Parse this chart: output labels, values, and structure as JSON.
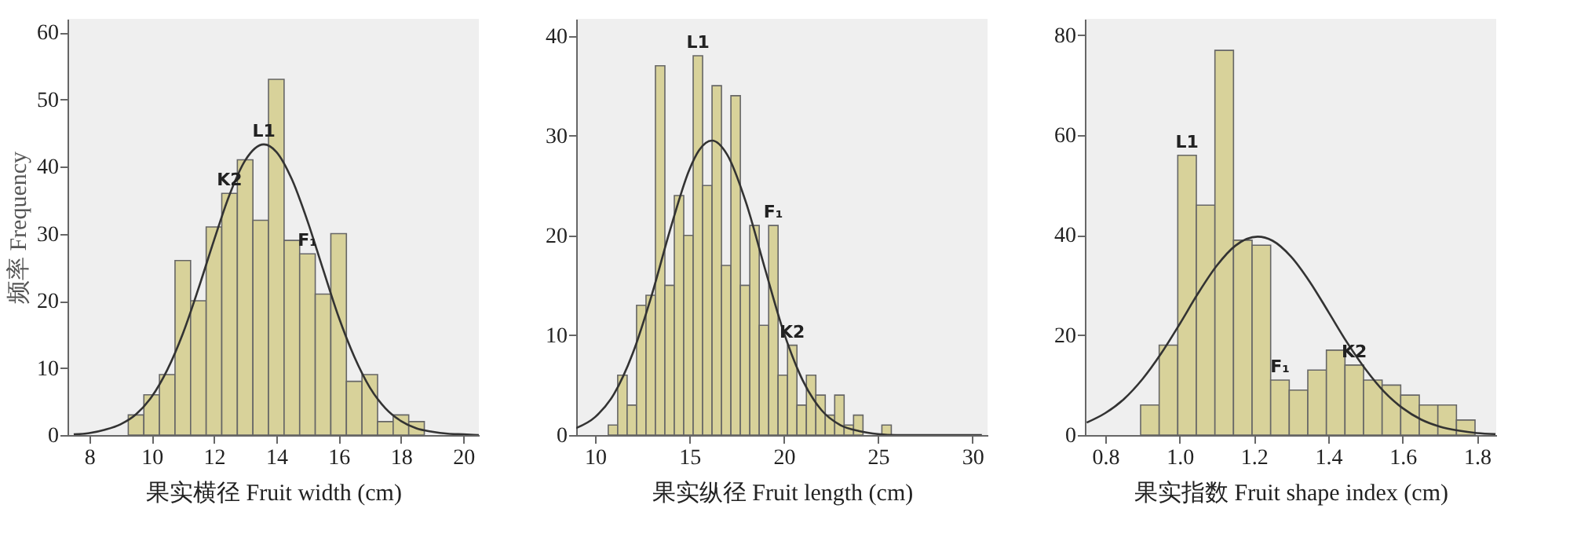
{
  "chart_data": [
    {
      "type": "histogram",
      "xlabel": "果实横径 Fruit width (cm)",
      "ylabel": "频率 Frequency",
      "color": "#d8d29a",
      "bins": [
        9.25,
        9.75,
        10.25,
        10.75,
        11.25,
        11.75,
        12.25,
        12.75,
        13.25,
        13.75,
        14.25,
        14.75,
        15.25,
        15.75,
        16.25,
        16.75,
        17.25,
        17.75,
        18.25,
        18.75
      ],
      "values": [
        3,
        6,
        9,
        26,
        20,
        31,
        36,
        41,
        32,
        53,
        29,
        27,
        21,
        30,
        8,
        9,
        2,
        3,
        2
      ],
      "series": [
        {
          "type": "line",
          "color": "#333333",
          "x": [
            7.5,
            8,
            8.5,
            9,
            9.5,
            10,
            10.5,
            11,
            11.5,
            12,
            12.5,
            13,
            13.6,
            14,
            14.5,
            15,
            15.5,
            16,
            16.5,
            17,
            17.5,
            18,
            18.5,
            19,
            19.5,
            20,
            20.5
          ],
          "values": [
            0.1,
            0.3,
            0.8,
            1.6,
            3.1,
            5.7,
            9.7,
            15.1,
            21.8,
            29.0,
            35.8,
            40.9,
            43.3,
            42.2,
            38.1,
            31.9,
            24.7,
            17.6,
            11.7,
            7.1,
            4.0,
            2.1,
            1.0,
            0.5,
            0.2,
            0.1,
            0.0
          ]
        }
      ],
      "xlim": [
        7.3,
        20.5
      ],
      "ylim": [
        0,
        62
      ],
      "xticks": [
        8,
        10,
        12,
        14,
        16,
        18,
        20
      ],
      "yticks": [
        0,
        10,
        20,
        30,
        40,
        50,
        60
      ],
      "annotations": [
        {
          "text": "L1",
          "x": 13.6,
          "y": 43.3
        },
        {
          "text": "K2",
          "x": 12.5,
          "y": 36
        },
        {
          "text": "F₁",
          "x": 15,
          "y": 27
        }
      ]
    },
    {
      "type": "histogram",
      "xlabel": "果实纵径 Fruit length (cm)",
      "color": "#d8d29a",
      "bins": [
        10.7,
        11.2,
        11.7,
        12.2,
        12.7,
        13.2,
        13.7,
        14.2,
        14.7,
        15.2,
        15.7,
        16.2,
        16.7,
        17.2,
        17.7,
        18.2,
        18.7,
        19.2,
        19.7,
        20.2,
        20.7,
        21.2,
        21.7,
        22.2,
        22.7,
        23.2,
        23.7,
        24.2,
        24.7,
        25.2,
        25.7
      ],
      "values": [
        1,
        6,
        3,
        13,
        14,
        37,
        15,
        24,
        20,
        38,
        25,
        35,
        17,
        34,
        15,
        21,
        11,
        21,
        6,
        9,
        3,
        6,
        4,
        2,
        4,
        1,
        2,
        0,
        0,
        1
      ],
      "series": [
        {
          "type": "line",
          "color": "#333333",
          "x": [
            9,
            10,
            11,
            12,
            13,
            14,
            15,
            15.5,
            16.2,
            17,
            18,
            19,
            20,
            21,
            22,
            23,
            24,
            25,
            26,
            28,
            30.5
          ],
          "values": [
            0.7,
            1.8,
            4.1,
            8.2,
            14.0,
            20.7,
            26.6,
            28.5,
            29.5,
            28.1,
            23.3,
            16.7,
            10.3,
            5.5,
            2.5,
            1.0,
            0.4,
            0.1,
            0.0,
            0.0,
            0.0
          ]
        }
      ],
      "xlim": [
        9,
        30.8
      ],
      "ylim": [
        0,
        41.7
      ],
      "xticks": [
        10,
        15,
        20,
        25,
        30
      ],
      "yticks": [
        0,
        10,
        20,
        30,
        40
      ],
      "annotations": [
        {
          "text": "L1",
          "x": 15.45,
          "y": 38
        },
        {
          "text": "F₁",
          "x": 19.45,
          "y": 21
        },
        {
          "text": "K2",
          "x": 20.45,
          "y": 9
        }
      ]
    },
    {
      "type": "histogram",
      "xlabel": "果实指数 Fruit shape index (cm)",
      "color": "#d8d29a",
      "bins": [
        0.895,
        0.945,
        0.995,
        1.045,
        1.095,
        1.145,
        1.195,
        1.245,
        1.295,
        1.345,
        1.395,
        1.445,
        1.495,
        1.545,
        1.595,
        1.645,
        1.695,
        1.745,
        1.795
      ],
      "values": [
        6,
        18,
        56,
        46,
        77,
        39,
        38,
        11,
        9,
        13,
        17,
        14,
        11,
        10,
        8,
        6,
        6,
        3
      ],
      "series": [
        {
          "type": "line",
          "color": "#333333",
          "x": [
            0.75,
            0.8,
            0.85,
            0.9,
            0.95,
            1.0,
            1.05,
            1.1,
            1.15,
            1.21,
            1.25,
            1.3,
            1.35,
            1.4,
            1.45,
            1.5,
            1.55,
            1.6,
            1.65,
            1.7,
            1.75,
            1.8,
            1.85
          ],
          "values": [
            2.5,
            4.4,
            7.2,
            11.2,
            16.3,
            22.2,
            28.4,
            33.9,
            37.9,
            39.7,
            38.9,
            35.7,
            30.7,
            24.7,
            18.6,
            13.2,
            8.7,
            5.4,
            3.1,
            1.7,
            0.9,
            0.4,
            0.2
          ]
        }
      ],
      "xlim": [
        0.745,
        1.852
      ],
      "ylim": [
        0,
        83.3
      ],
      "xticks": [
        0.8,
        {
          "value": 1,
          "label": "1.0"
        },
        1.2,
        1.4,
        1.6,
        1.8
      ],
      "yticks": [
        0,
        20,
        40,
        60,
        80
      ],
      "annotations": [
        {
          "text": "L1",
          "x": 1.02,
          "y": 56
        },
        {
          "text": "F₁",
          "x": 1.27,
          "y": 11
        },
        {
          "text": "K2",
          "x": 1.47,
          "y": 14
        }
      ]
    }
  ]
}
